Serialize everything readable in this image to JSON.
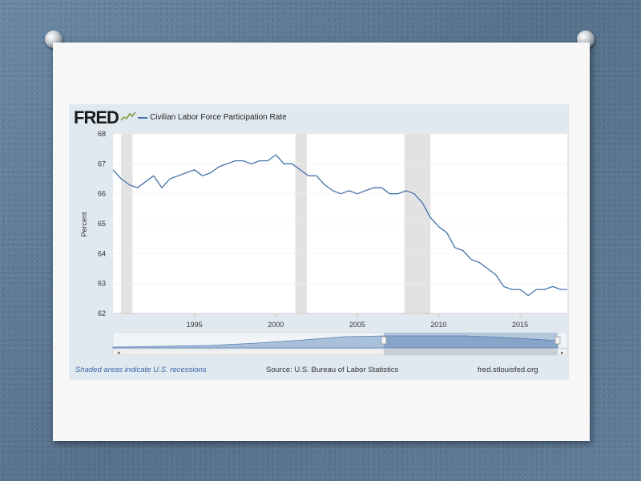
{
  "header": {
    "logo": "FRED",
    "series_title": "Civilian Labor Force Participation Rate"
  },
  "footer": {
    "recession_note": "Shaded areas indicate U.S. recessions",
    "source": "Source: U.S. Bureau of Labor Statistics",
    "site": "fred.stlouisfed.org"
  },
  "colors": {
    "line": "#4572a7",
    "recession": "#e2e2e2",
    "panel": "#e1e9f0"
  },
  "chart_data": {
    "type": "line",
    "title": "Civilian Labor Force Participation Rate",
    "ylabel": "Percent",
    "xlabel": "",
    "xlim": [
      1990.0,
      2017.9
    ],
    "ylim": [
      62,
      68
    ],
    "y_ticks": [
      62,
      63,
      64,
      65,
      66,
      67,
      68
    ],
    "x_ticks": [
      1995,
      2000,
      2005,
      2010,
      2015
    ],
    "recessions": [
      [
        1990.5,
        1991.2
      ],
      [
        2001.2,
        2001.9
      ],
      [
        2007.9,
        2009.5
      ]
    ],
    "series": [
      {
        "name": "Civilian Labor Force Participation Rate",
        "x": [
          1990.0,
          1990.5,
          1991.0,
          1991.5,
          1992.0,
          1992.5,
          1993.0,
          1993.5,
          1994.0,
          1994.5,
          1995.0,
          1995.5,
          1996.0,
          1996.5,
          1997.0,
          1997.5,
          1998.0,
          1998.5,
          1999.0,
          1999.5,
          2000.0,
          2000.5,
          2001.0,
          2001.5,
          2002.0,
          2002.5,
          2003.0,
          2003.5,
          2004.0,
          2004.5,
          2005.0,
          2005.5,
          2006.0,
          2006.5,
          2007.0,
          2007.5,
          2008.0,
          2008.5,
          2009.0,
          2009.5,
          2010.0,
          2010.5,
          2011.0,
          2011.5,
          2012.0,
          2012.5,
          2013.0,
          2013.5,
          2014.0,
          2014.5,
          2015.0,
          2015.5,
          2016.0,
          2016.5,
          2017.0,
          2017.5,
          2017.9
        ],
        "values": [
          66.8,
          66.5,
          66.3,
          66.2,
          66.4,
          66.6,
          66.2,
          66.5,
          66.6,
          66.7,
          66.8,
          66.6,
          66.7,
          66.9,
          67.0,
          67.1,
          67.1,
          67.0,
          67.1,
          67.1,
          67.3,
          67.0,
          67.0,
          66.8,
          66.6,
          66.6,
          66.3,
          66.1,
          66.0,
          66.1,
          66.0,
          66.1,
          66.2,
          66.2,
          66.0,
          66.0,
          66.1,
          66.0,
          65.7,
          65.2,
          64.9,
          64.7,
          64.2,
          64.1,
          63.8,
          63.7,
          63.5,
          63.3,
          62.9,
          62.8,
          62.8,
          62.6,
          62.8,
          62.8,
          62.9,
          62.8,
          62.8
        ]
      }
    ]
  }
}
